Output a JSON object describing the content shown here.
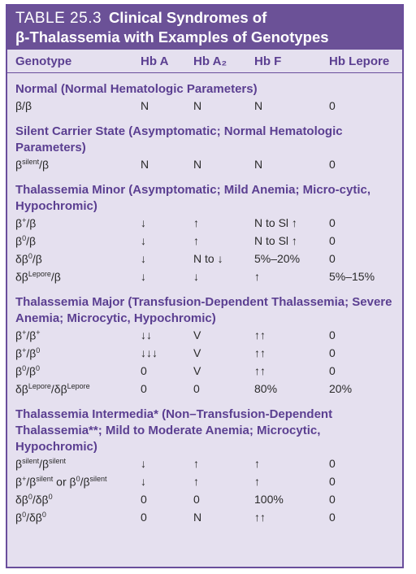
{
  "title": {
    "number": "TABLE 25.3",
    "text_line1": "Clinical Syndromes of",
    "text_line2": "β-Thalassemia with Examples of Genotypes"
  },
  "columns": [
    "Genotype",
    "Hb A",
    "Hb A₂",
    "Hb F",
    "Hb Lepore"
  ],
  "sections": [
    {
      "heading": "Normal (Normal Hematologic Parameters)",
      "rows": [
        [
          "β/β",
          "N",
          "N",
          "N",
          "0"
        ]
      ]
    },
    {
      "heading": "Silent Carrier State (Asymptomatic; Normal Hematologic Parameters)",
      "rows": [
        [
          "β^silent/β",
          "N",
          "N",
          "N",
          "0"
        ]
      ]
    },
    {
      "heading": "Thalassemia Minor (Asymptomatic; Mild Anemia; Micro-cytic, Hypochromic)",
      "rows": [
        [
          "β^+/β",
          "↓",
          "↑",
          "N to Sl ↑",
          "0"
        ],
        [
          "β^0/β",
          "↓",
          "↑",
          "N to Sl ↑",
          "0"
        ],
        [
          "δβ^0/β",
          "↓",
          "N to ↓",
          "5%–20%",
          "0"
        ],
        [
          "δβ^Lepore/β",
          "↓",
          "↓",
          "↑",
          "5%–15%"
        ]
      ]
    },
    {
      "heading": "Thalassemia Major (Transfusion-Dependent Thalassemia; Severe Anemia; Microcytic, Hypochromic)",
      "rows": [
        [
          "β^+/β^+",
          "↓↓",
          "V",
          "↑↑",
          "0"
        ],
        [
          "β^+/β^0",
          "↓↓↓",
          "V",
          "↑↑",
          "0"
        ],
        [
          "β^0/β^0",
          "0",
          "V",
          "↑↑",
          "0"
        ],
        [
          "δβ^Lepore/δβ^Lepore",
          "0",
          "0",
          "80%",
          "20%"
        ]
      ]
    },
    {
      "heading": "Thalassemia Intermedia* (Non–Transfusion-Dependent Thalassemia**; Mild to Moderate Anemia; Microcytic, Hypochromic)",
      "rows": [
        [
          "β^silent/β^silent",
          "↓",
          "↑",
          "↑",
          "0"
        ],
        [
          "β^+/β^silent or β^0/β^silent",
          "↓",
          "↑",
          "↑",
          "0"
        ],
        [
          "δβ^0/δβ^0",
          "0",
          "0",
          "100%",
          "0"
        ],
        [
          "β^0/δβ^0",
          "0",
          "N",
          "↑↑",
          "0"
        ]
      ]
    }
  ],
  "colors": {
    "title_bg": "#6b5197",
    "panel_bg": "#e5e0ef",
    "heading_text": "#5b3f91",
    "body_text": "#2a2a2a"
  }
}
